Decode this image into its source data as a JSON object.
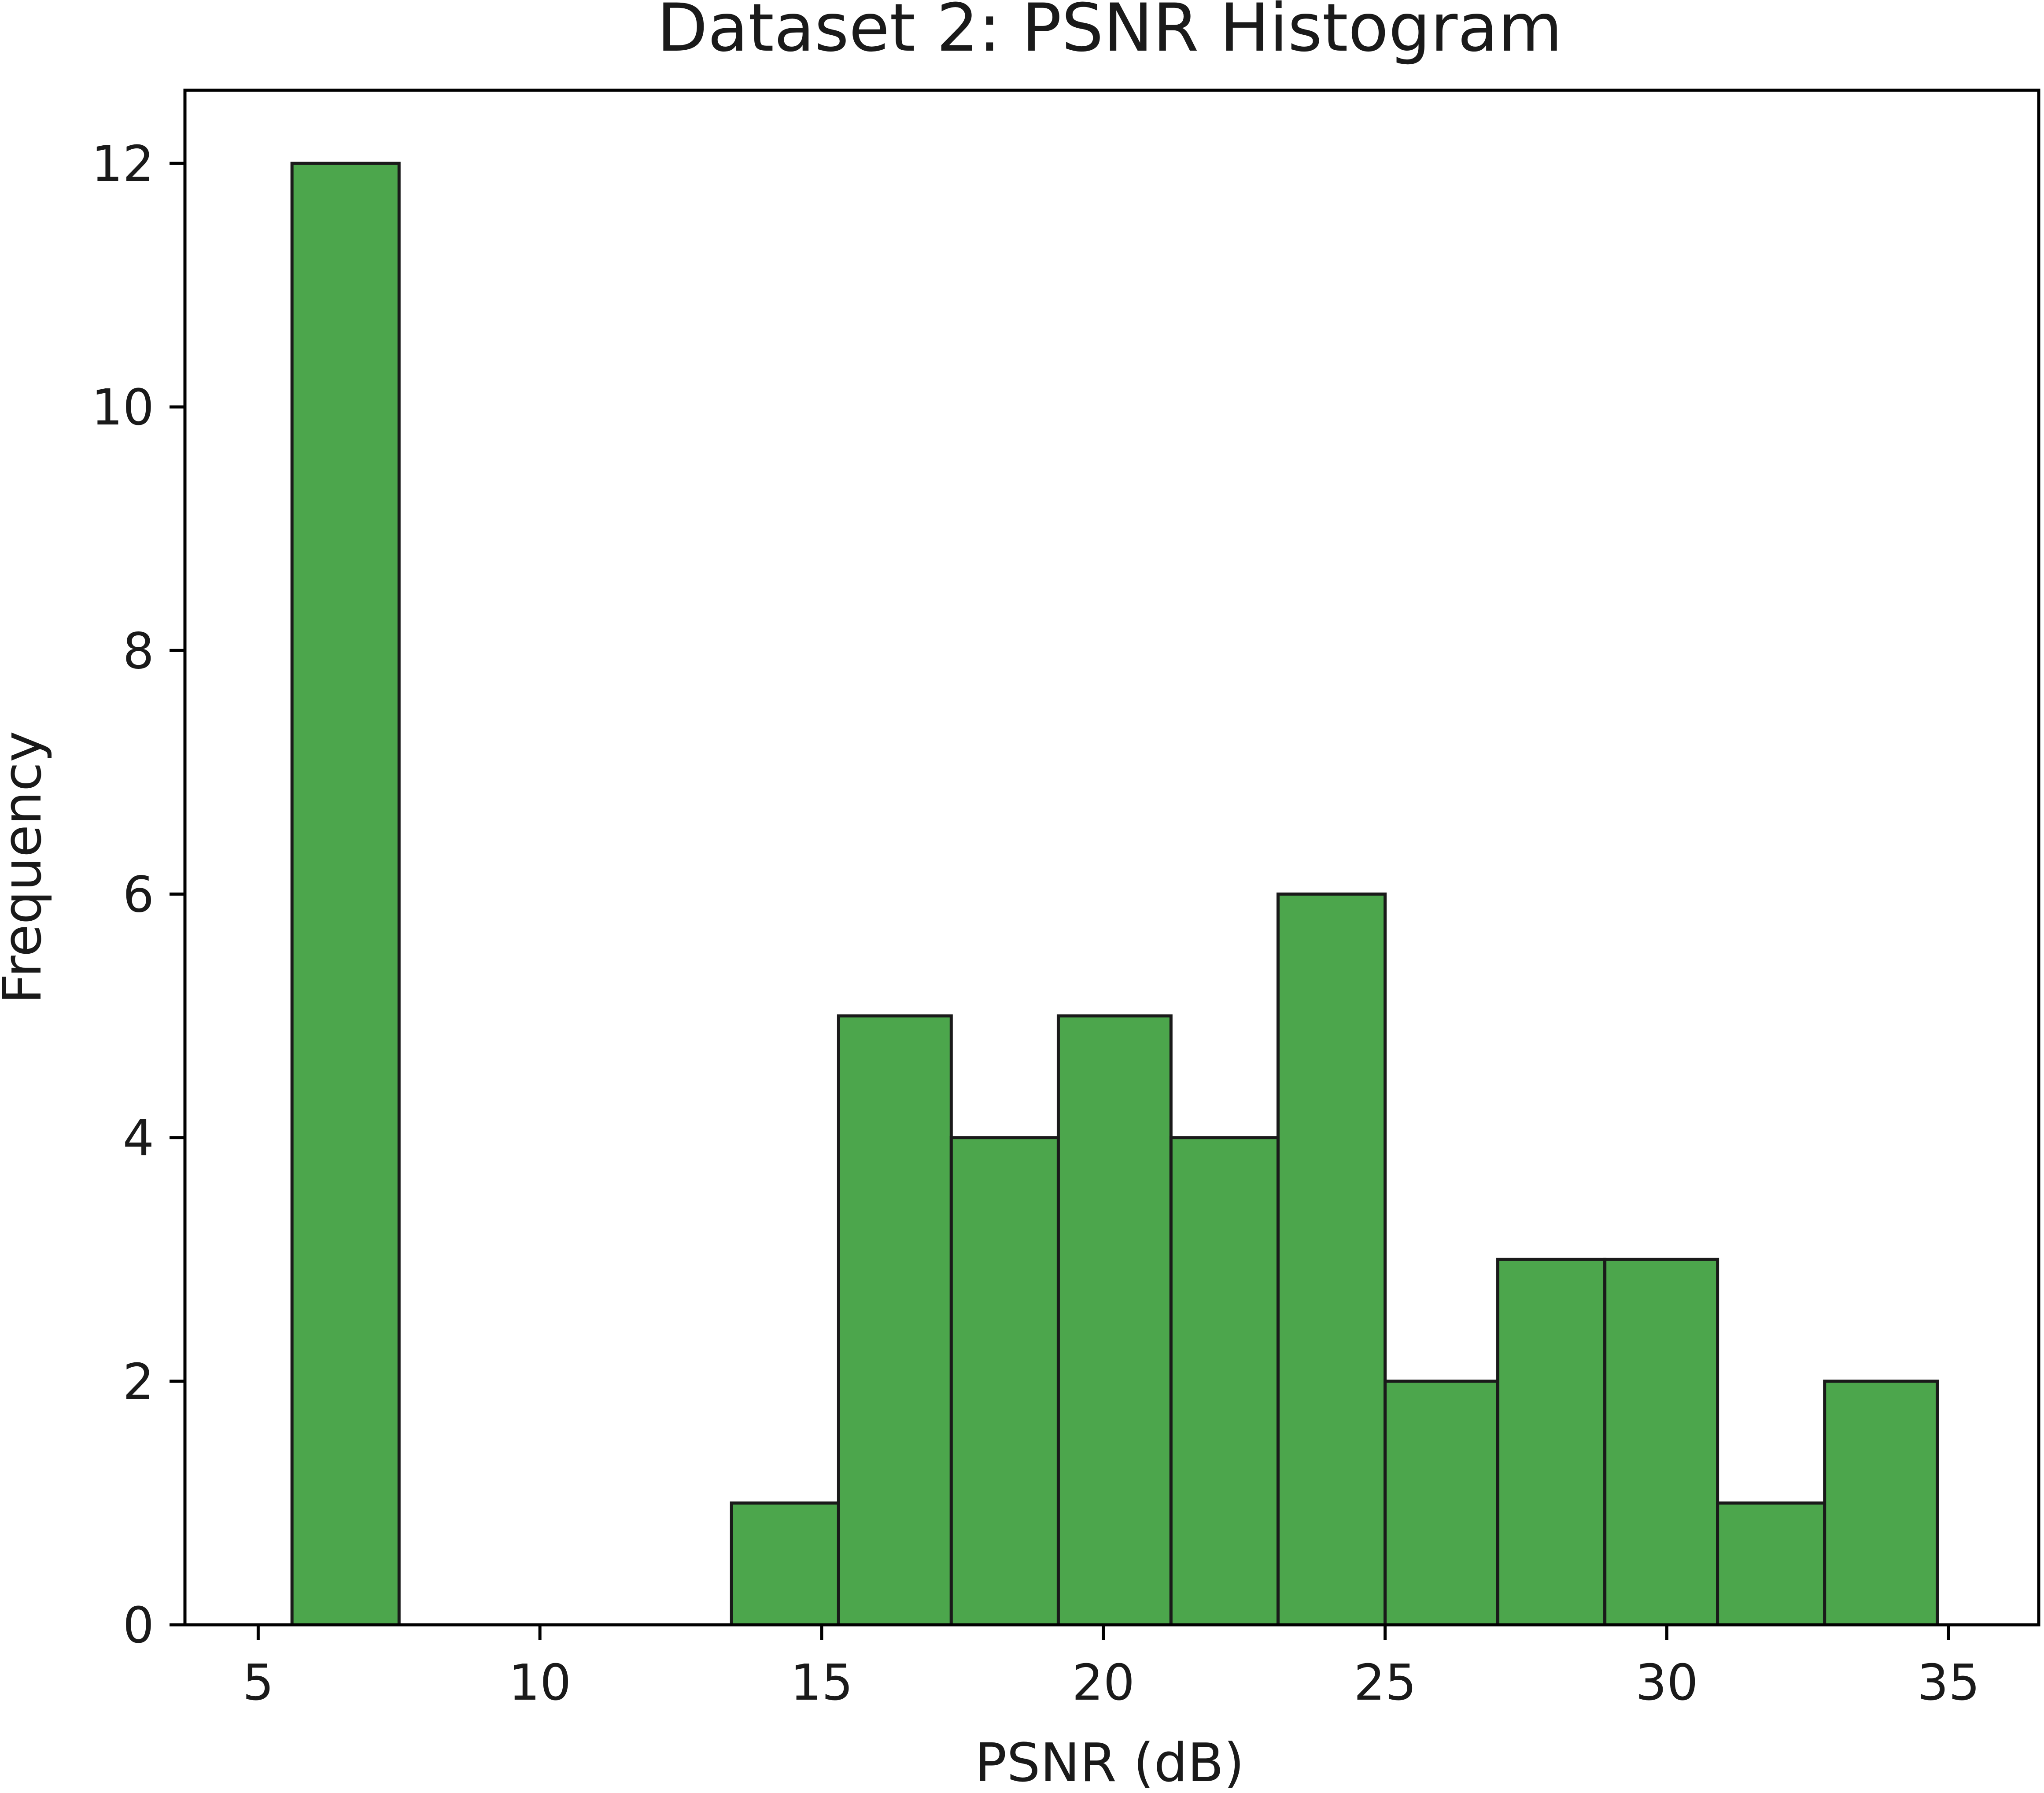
{
  "chart_data": {
    "type": "bar",
    "title": "Dataset 2: PSNR Histogram",
    "xlabel": "PSNR (dB)",
    "ylabel": "Frequency",
    "xlim": [
      3.7,
      36.6
    ],
    "ylim": [
      0,
      12.6
    ],
    "xticks": [
      5,
      10,
      15,
      20,
      25,
      30,
      35
    ],
    "yticks": [
      0,
      2,
      4,
      6,
      8,
      10,
      12
    ],
    "grid": false,
    "colors": {
      "bar_fill": "#4ca64c",
      "bar_edge": "#1a1a1a"
    },
    "bins": [
      {
        "x0": 5.6,
        "x1": 7.5,
        "count": 12
      },
      {
        "x0": 7.5,
        "x1": 9.5,
        "count": 0
      },
      {
        "x0": 9.5,
        "x1": 11.4,
        "count": 0
      },
      {
        "x0": 11.4,
        "x1": 13.4,
        "count": 0
      },
      {
        "x0": 13.4,
        "x1": 15.3,
        "count": 1
      },
      {
        "x0": 15.3,
        "x1": 17.3,
        "count": 5
      },
      {
        "x0": 17.3,
        "x1": 19.2,
        "count": 4
      },
      {
        "x0": 19.2,
        "x1": 21.2,
        "count": 5
      },
      {
        "x0": 21.2,
        "x1": 23.1,
        "count": 4
      },
      {
        "x0": 23.1,
        "x1": 25.0,
        "count": 6
      },
      {
        "x0": 25.0,
        "x1": 27.0,
        "count": 2
      },
      {
        "x0": 27.0,
        "x1": 28.9,
        "count": 3
      },
      {
        "x0": 28.9,
        "x1": 30.9,
        "count": 3
      },
      {
        "x0": 30.9,
        "x1": 32.8,
        "count": 1
      },
      {
        "x0": 32.8,
        "x1": 34.8,
        "count": 2
      }
    ]
  }
}
